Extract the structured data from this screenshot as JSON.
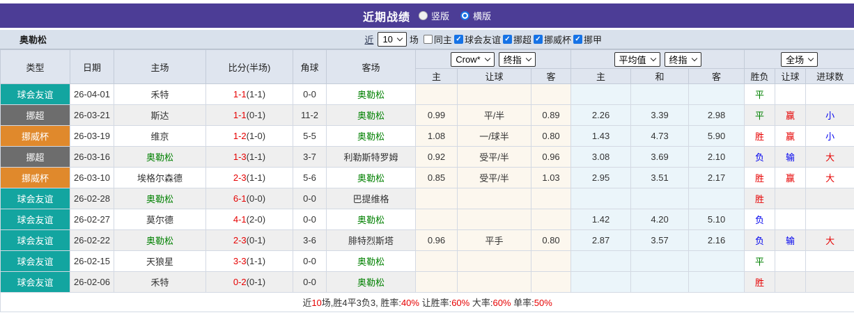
{
  "title_bar": {
    "title": "近期战绩",
    "radios": [
      {
        "label": "竖版",
        "checked": false
      },
      {
        "label": "横版",
        "checked": true
      }
    ]
  },
  "filter_bar": {
    "team_name": "奥勒松",
    "near_label": "近",
    "count": "10",
    "unit_label": "场",
    "checkboxes": [
      {
        "label": "同主",
        "checked": false
      },
      {
        "label": "球会友谊",
        "checked": true
      },
      {
        "label": "挪超",
        "checked": true
      },
      {
        "label": "挪威杯",
        "checked": true
      },
      {
        "label": "挪甲",
        "checked": true
      }
    ]
  },
  "table": {
    "columns": [
      "类型",
      "日期",
      "主场",
      "比分(半场)",
      "角球",
      "客场"
    ],
    "header_groups": {
      "bookmaker": "Crow*",
      "odds_time": "终指",
      "avg": "平均值",
      "avg_time": "终指",
      "scope": "全场"
    },
    "sub_columns": [
      "主",
      "让球",
      "客",
      "主",
      "和",
      "客",
      "胜负",
      "让球",
      "进球数"
    ],
    "rows": [
      {
        "type": "球会友谊",
        "badge": "teal",
        "date": "26-04-01",
        "home": "禾特",
        "home_focus": false,
        "score": "1-1",
        "half": "(1-1)",
        "corner": "0-0",
        "away": "奥勒松",
        "away_focus": true,
        "odds_home": "",
        "odds_line": "",
        "odds_away": "",
        "avg_home": "",
        "avg_draw": "",
        "avg_away": "",
        "res_wdl": "平",
        "res_wdl_color": "green",
        "res_handicap": "",
        "res_handicap_color": "",
        "res_goals": "",
        "res_goals_color": ""
      },
      {
        "type": "挪超",
        "badge": "gray",
        "date": "26-03-21",
        "home": "斯达",
        "home_focus": false,
        "score": "1-1",
        "half": "(0-1)",
        "corner": "11-2",
        "away": "奥勒松",
        "away_focus": true,
        "odds_home": "0.99",
        "odds_line": "平/半",
        "odds_away": "0.89",
        "avg_home": "2.26",
        "avg_draw": "3.39",
        "avg_away": "2.98",
        "res_wdl": "平",
        "res_wdl_color": "green",
        "res_handicap": "赢",
        "res_handicap_color": "red",
        "res_goals": "小",
        "res_goals_color": "blue"
      },
      {
        "type": "挪威杯",
        "badge": "orange",
        "date": "26-03-19",
        "home": "维京",
        "home_focus": false,
        "score": "1-2",
        "half": "(1-0)",
        "corner": "5-5",
        "away": "奥勒松",
        "away_focus": true,
        "odds_home": "1.08",
        "odds_line": "一/球半",
        "odds_away": "0.80",
        "avg_home": "1.43",
        "avg_draw": "4.73",
        "avg_away": "5.90",
        "res_wdl": "胜",
        "res_wdl_color": "red",
        "res_handicap": "赢",
        "res_handicap_color": "red",
        "res_goals": "小",
        "res_goals_color": "blue"
      },
      {
        "type": "挪超",
        "badge": "gray",
        "date": "26-03-16",
        "home": "奥勒松",
        "home_focus": true,
        "score": "1-3",
        "half": "(1-1)",
        "corner": "3-7",
        "away": "利勒斯特罗姆",
        "away_focus": false,
        "odds_home": "0.92",
        "odds_line": "受平/半",
        "odds_away": "0.96",
        "avg_home": "3.08",
        "avg_draw": "3.69",
        "avg_away": "2.10",
        "res_wdl": "负",
        "res_wdl_color": "blue",
        "res_handicap": "输",
        "res_handicap_color": "blue",
        "res_goals": "大",
        "res_goals_color": "red"
      },
      {
        "type": "挪威杯",
        "badge": "orange",
        "date": "26-03-10",
        "home": "埃格尔森德",
        "home_focus": false,
        "score": "2-3",
        "half": "(1-1)",
        "corner": "5-6",
        "away": "奥勒松",
        "away_focus": true,
        "odds_home": "0.85",
        "odds_line": "受平/半",
        "odds_away": "1.03",
        "avg_home": "2.95",
        "avg_draw": "3.51",
        "avg_away": "2.17",
        "res_wdl": "胜",
        "res_wdl_color": "red",
        "res_handicap": "赢",
        "res_handicap_color": "red",
        "res_goals": "大",
        "res_goals_color": "red"
      },
      {
        "type": "球会友谊",
        "badge": "teal",
        "date": "26-02-28",
        "home": "奥勒松",
        "home_focus": true,
        "score": "6-1",
        "half": "(0-0)",
        "corner": "0-0",
        "away": "巴提维格",
        "away_focus": false,
        "odds_home": "",
        "odds_line": "",
        "odds_away": "",
        "avg_home": "",
        "avg_draw": "",
        "avg_away": "",
        "res_wdl": "胜",
        "res_wdl_color": "red",
        "res_handicap": "",
        "res_handicap_color": "",
        "res_goals": "",
        "res_goals_color": ""
      },
      {
        "type": "球会友谊",
        "badge": "teal",
        "date": "26-02-27",
        "home": "莫尔德",
        "home_focus": false,
        "score": "4-1",
        "half": "(2-0)",
        "corner": "0-0",
        "away": "奥勒松",
        "away_focus": true,
        "odds_home": "",
        "odds_line": "",
        "odds_away": "",
        "avg_home": "1.42",
        "avg_draw": "4.20",
        "avg_away": "5.10",
        "res_wdl": "负",
        "res_wdl_color": "blue",
        "res_handicap": "",
        "res_handicap_color": "",
        "res_goals": "",
        "res_goals_color": ""
      },
      {
        "type": "球会友谊",
        "badge": "teal",
        "date": "26-02-22",
        "home": "奥勒松",
        "home_focus": true,
        "score": "2-3",
        "half": "(0-1)",
        "corner": "3-6",
        "away": "腓特烈斯塔",
        "away_focus": false,
        "odds_home": "0.96",
        "odds_line": "平手",
        "odds_away": "0.80",
        "avg_home": "2.87",
        "avg_draw": "3.57",
        "avg_away": "2.16",
        "res_wdl": "负",
        "res_wdl_color": "blue",
        "res_handicap": "输",
        "res_handicap_color": "blue",
        "res_goals": "大",
        "res_goals_color": "red"
      },
      {
        "type": "球会友谊",
        "badge": "teal",
        "date": "26-02-15",
        "home": "天狼星",
        "home_focus": false,
        "score": "3-3",
        "half": "(1-1)",
        "corner": "0-0",
        "away": "奥勒松",
        "away_focus": true,
        "odds_home": "",
        "odds_line": "",
        "odds_away": "",
        "avg_home": "",
        "avg_draw": "",
        "avg_away": "",
        "res_wdl": "平",
        "res_wdl_color": "green",
        "res_handicap": "",
        "res_handicap_color": "",
        "res_goals": "",
        "res_goals_color": ""
      },
      {
        "type": "球会友谊",
        "badge": "teal",
        "date": "26-02-06",
        "home": "禾特",
        "home_focus": false,
        "score": "0-2",
        "half": "(0-1)",
        "corner": "0-0",
        "away": "奥勒松",
        "away_focus": true,
        "odds_home": "",
        "odds_line": "",
        "odds_away": "",
        "avg_home": "",
        "avg_draw": "",
        "avg_away": "",
        "res_wdl": "胜",
        "res_wdl_color": "red",
        "res_handicap": "",
        "res_handicap_color": "",
        "res_goals": "",
        "res_goals_color": ""
      }
    ]
  },
  "footer": {
    "segments": [
      {
        "text": "近",
        "red": false
      },
      {
        "text": "10",
        "red": true
      },
      {
        "text": "场,胜4平3负3, 胜率:",
        "red": false
      },
      {
        "text": "40%",
        "red": true
      },
      {
        "text": " 让胜率:",
        "red": false
      },
      {
        "text": "60%",
        "red": true
      },
      {
        "text": " 大率:",
        "red": false
      },
      {
        "text": "60%",
        "red": true
      },
      {
        "text": " 单率:",
        "red": false
      },
      {
        "text": "50%",
        "red": true
      }
    ]
  },
  "colors": {
    "accent_purple": "#4c3d96",
    "badge_teal": "#13a5a0",
    "badge_gray": "#6d6d6d",
    "badge_orange": "#e0892c",
    "win_red": "#e60000",
    "draw_green": "#008000",
    "loss_blue": "#0000ee",
    "handicap_bg": "#fcf7ee",
    "avg_bg": "#ebf5fa",
    "header_bg": "#dfe5ef",
    "filter_row_bg": "#d9e1ec"
  }
}
